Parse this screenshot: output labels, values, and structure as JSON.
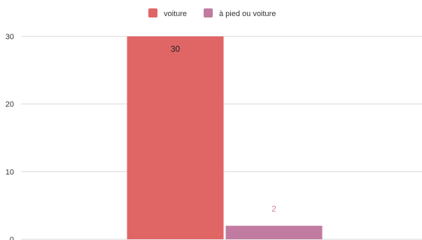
{
  "chart_data": {
    "type": "bar",
    "categories": [
      ""
    ],
    "series": [
      {
        "name": "voiture",
        "values": [
          30
        ],
        "color": "#e06666"
      },
      {
        "name": "à pied ou voiture",
        "values": [
          2
        ],
        "color": "#c27ba0"
      }
    ],
    "data_labels": [
      "30",
      "2"
    ],
    "data_label_colors": [
      "#222222",
      "#d77fa1"
    ],
    "yticks": [
      0,
      10,
      20,
      30
    ],
    "ylim": [
      0,
      30
    ],
    "grid": true,
    "legend": "top-center"
  }
}
